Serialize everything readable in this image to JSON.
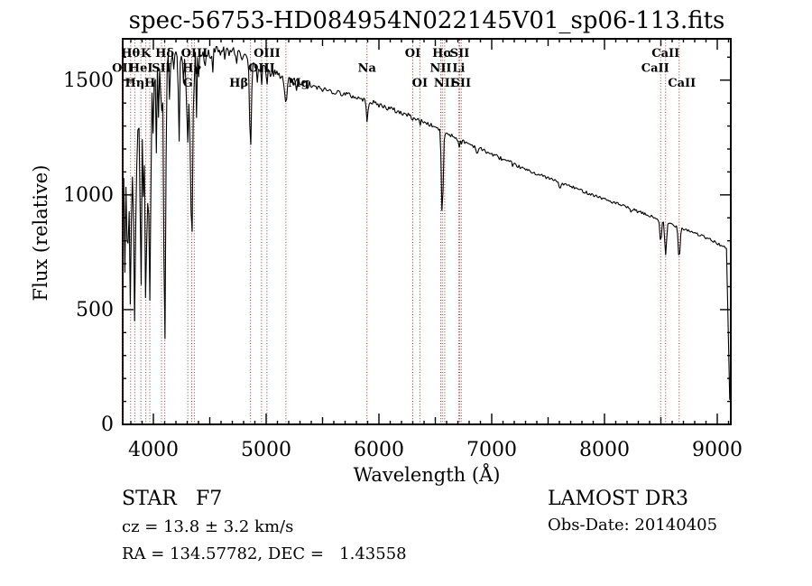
{
  "title": "spec-56753-HD084954N022145V01_sp06-113.fits",
  "footer": {
    "left": [
      "STAR   F7",
      "cz = 13.8 ± 3.2 km/s",
      "RA = 134.57782, DEC =   1.43558"
    ],
    "right": [
      "LAMOST DR3",
      "Obs-Date: 20140405"
    ]
  },
  "chart_data": {
    "type": "line",
    "title": "spec-56753-HD084954N022145V01_sp06-113.fits",
    "xlabel": "Wavelength (Å)",
    "ylabel": "Flux (relative)",
    "xlim": [
      3728,
      9120
    ],
    "ylim": [
      0,
      1680
    ],
    "xticks": [
      4000,
      5000,
      6000,
      7000,
      8000,
      9000
    ],
    "yticks": [
      0,
      500,
      1000,
      1500
    ],
    "minor_x_step": 100,
    "minor_y_step": 100,
    "grid": false,
    "line_color": "#000000",
    "marker_line_color": "#993333",
    "continuum_points": [
      [
        3728,
        1230
      ],
      [
        3780,
        1360
      ],
      [
        3850,
        1430
      ],
      [
        3950,
        1500
      ],
      [
        4050,
        1545
      ],
      [
        4150,
        1575
      ],
      [
        4250,
        1595
      ],
      [
        4400,
        1615
      ],
      [
        4550,
        1625
      ],
      [
        4700,
        1625
      ],
      [
        4800,
        1605
      ],
      [
        4900,
        1575
      ],
      [
        5000,
        1545
      ],
      [
        5100,
        1520
      ],
      [
        5200,
        1500
      ],
      [
        5350,
        1480
      ],
      [
        5500,
        1460
      ],
      [
        5700,
        1440
      ],
      [
        5900,
        1410
      ],
      [
        6100,
        1375
      ],
      [
        6300,
        1340
      ],
      [
        6500,
        1295
      ],
      [
        6700,
        1245
      ],
      [
        6900,
        1200
      ],
      [
        7100,
        1155
      ],
      [
        7300,
        1110
      ],
      [
        7600,
        1055
      ],
      [
        7900,
        1000
      ],
      [
        8200,
        945
      ],
      [
        8500,
        890
      ],
      [
        8800,
        835
      ],
      [
        9000,
        790
      ],
      [
        9080,
        765
      ],
      [
        9120,
        750
      ]
    ],
    "absorption_lines": [
      {
        "label": "OII",
        "wavelength": 3727,
        "row": 2,
        "depth": 0.15,
        "width": 6,
        "dx": 0
      },
      {
        "label": "Hθ",
        "wavelength": 3798,
        "row": 1,
        "depth": 0.63,
        "width": 7,
        "dx": 0
      },
      {
        "label": "Hη",
        "wavelength": 3835,
        "row": 3,
        "depth": 0.65,
        "width": 7,
        "dx": 0
      },
      {
        "label": "HeI",
        "wavelength": 3889,
        "row": 2,
        "depth": 0.62,
        "width": 7,
        "dx": 0
      },
      {
        "label": "K",
        "wavelength": 3933,
        "row": 1,
        "depth": 0.69,
        "width": 8,
        "dx": 0
      },
      {
        "label": "H",
        "wavelength": 3968,
        "row": 3,
        "depth": 0.66,
        "width": 8,
        "dx": 0
      },
      {
        "label": "SII",
        "wavelength": 4072,
        "row": 2,
        "depth": 0.14,
        "width": 5,
        "dx": 0
      },
      {
        "label": "Hδ",
        "wavelength": 4101,
        "row": 1,
        "depth": 0.79,
        "width": 8,
        "dx": 0
      },
      {
        "label": "G",
        "wavelength": 4305,
        "row": 3,
        "depth": 0.25,
        "width": 9,
        "dx": 0
      },
      {
        "label": "Hγ",
        "wavelength": 4340,
        "row": 2,
        "depth": 0.54,
        "width": 8,
        "dx": 0
      },
      {
        "label": "OIII",
        "wavelength": 4363,
        "row": 1,
        "depth": 0.08,
        "width": 5,
        "dx": 0
      },
      {
        "label": "Hβ",
        "wavelength": 4861,
        "row": 3,
        "depth": 0.24,
        "width": 8,
        "dx": -13
      },
      {
        "label": "OIII",
        "wavelength": 4959,
        "row": 2,
        "depth": 0.03,
        "width": 4,
        "dx": 0
      },
      {
        "label": "OIII",
        "wavelength": 5007,
        "row": 1,
        "depth": 0.03,
        "width": 4,
        "dx": 0
      },
      {
        "label": "Mg",
        "wavelength": 5175,
        "row": 3,
        "depth": 0.07,
        "width": 12,
        "dx": 14
      },
      {
        "label": "Na",
        "wavelength": 5894,
        "row": 2,
        "depth": 0.06,
        "width": 7,
        "dx": 0
      },
      {
        "label": "OI",
        "wavelength": 6300,
        "row": 1,
        "depth": 0.02,
        "width": 4,
        "dx": 0
      },
      {
        "label": "OI",
        "wavelength": 6363,
        "row": 3,
        "depth": 0.02,
        "width": 4,
        "dx": 0
      },
      {
        "label": "NII",
        "wavelength": 6548,
        "row": 2,
        "depth": 0.03,
        "width": 4,
        "dx": 0
      },
      {
        "label": "Hα",
        "wavelength": 6562,
        "row": 1,
        "depth": 0.3,
        "width": 7,
        "dx": 0
      },
      {
        "label": "NII",
        "wavelength": 6583,
        "row": 3,
        "depth": 0.02,
        "width": 4,
        "dx": 0
      },
      {
        "label": "Li",
        "wavelength": 6707,
        "row": 2,
        "depth": 0.02,
        "width": 4,
        "dx": 0
      },
      {
        "label": "SII",
        "wavelength": 6716,
        "row": 1,
        "depth": 0.02,
        "width": 4,
        "dx": 0
      },
      {
        "label": "SII",
        "wavelength": 6730,
        "row": 3,
        "depth": 0.02,
        "width": 4,
        "dx": 0
      },
      {
        "label": "CaII",
        "wavelength": 8498,
        "row": 2,
        "depth": 0.12,
        "width": 7,
        "dx": -6
      },
      {
        "label": "CaII",
        "wavelength": 8542,
        "row": 1,
        "depth": 0.17,
        "width": 8,
        "dx": 0
      },
      {
        "label": "CaII",
        "wavelength": 8662,
        "row": 3,
        "depth": 0.16,
        "width": 8,
        "dx": 3
      }
    ],
    "extra_dips": [
      {
        "wavelength": 3745,
        "depth": 0.5,
        "width": 5
      },
      {
        "wavelength": 3762,
        "depth": 0.35,
        "width": 4
      },
      {
        "wavelength": 3772,
        "depth": 0.55,
        "width": 5
      },
      {
        "wavelength": 3788,
        "depth": 0.3,
        "width": 3
      },
      {
        "wavelength": 3820,
        "depth": 0.35,
        "width": 4
      },
      {
        "wavelength": 3850,
        "depth": 0.3,
        "width": 4
      },
      {
        "wavelength": 3868,
        "depth": 0.3,
        "width": 3
      },
      {
        "wavelength": 3910,
        "depth": 0.3,
        "width": 4
      },
      {
        "wavelength": 3950,
        "depth": 0.25,
        "width": 3
      },
      {
        "wavelength": 3995,
        "depth": 0.2,
        "width": 3
      },
      {
        "wavelength": 4026,
        "depth": 0.22,
        "width": 4
      },
      {
        "wavelength": 4045,
        "depth": 0.15,
        "width": 3
      },
      {
        "wavelength": 4144,
        "depth": 0.12,
        "width": 3
      },
      {
        "wavelength": 4226,
        "depth": 0.26,
        "width": 4
      },
      {
        "wavelength": 4271,
        "depth": 0.14,
        "width": 3
      },
      {
        "wavelength": 4326,
        "depth": 0.1,
        "width": 3
      },
      {
        "wavelength": 4383,
        "depth": 0.16,
        "width": 3
      },
      {
        "wavelength": 4405,
        "depth": 0.1,
        "width": 3
      },
      {
        "wavelength": 4455,
        "depth": 0.1,
        "width": 3
      },
      {
        "wavelength": 4530,
        "depth": 0.08,
        "width": 3
      },
      {
        "wavelength": 4668,
        "depth": 0.05,
        "width": 3
      },
      {
        "wavelength": 4920,
        "depth": 0.06,
        "width": 3
      },
      {
        "wavelength": 5270,
        "depth": 0.04,
        "width": 3
      },
      {
        "wavelength": 6870,
        "depth": 0.03,
        "width": 5
      },
      {
        "wavelength": 7186,
        "depth": 0.02,
        "width": 4
      },
      {
        "wavelength": 7605,
        "depth": 0.035,
        "width": 6
      },
      {
        "wavelength": 8230,
        "depth": 0.02,
        "width": 4
      }
    ],
    "noise_bands": [
      {
        "to": 3745,
        "amp": 90
      },
      {
        "to": 4000,
        "amp": 60
      },
      {
        "to": 4300,
        "amp": 42
      },
      {
        "to": 4700,
        "amp": 30
      },
      {
        "to": 5400,
        "amp": 22
      },
      {
        "to": 6300,
        "amp": 12
      },
      {
        "to": 7200,
        "amp": 9
      },
      {
        "to": 9200,
        "amp": 7
      }
    ],
    "cutoff": {
      "start": 9082,
      "end": 9112,
      "floor": 70
    }
  }
}
